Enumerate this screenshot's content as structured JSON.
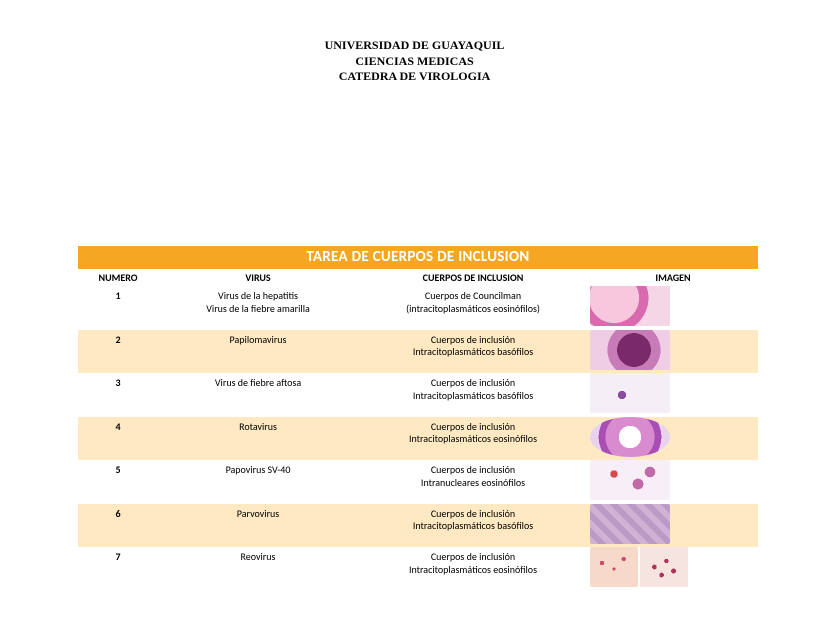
{
  "colors": {
    "banner": "#f5a623",
    "row_alt": "#ffe9c2",
    "text": "#000000"
  },
  "heading": {
    "l1": "UNIVERSIDAD DE GUAYAQUIL",
    "l2": "CIENCIAS MEDICAS",
    "l3": "CATEDRA DE VIROLOGIA"
  },
  "table": {
    "title": "TAREA DE CUERPOS DE INCLUSION",
    "columns": [
      "NUMERO",
      "VIRUS",
      "CUERPOS DE INCLUSION",
      "IMAGEN"
    ],
    "rows": [
      {
        "n": "1",
        "virus": "Virus de la hepatitis\nVirus de la fiebre amarilla",
        "body": "Cuerpos de Councilman\n(intracitoplasmáticos eosinófilos)",
        "img_class": "m1",
        "alt": false
      },
      {
        "n": "2",
        "virus": "Papilomavirus",
        "body": "Cuerpos de inclusión\nIntracitoplasmáticos basófilos",
        "img_class": "m2",
        "alt": true
      },
      {
        "n": "3",
        "virus": "Virus de fiebre aftosa",
        "body": "Cuerpos de inclusión\nIntracitoplasmáticos basófilos",
        "img_class": "m3",
        "alt": false
      },
      {
        "n": "4",
        "virus": "Rotavirus",
        "body": "Cuerpos de inclusión\nIntracitoplasmáticos eosinófilos",
        "img_class": "m4",
        "alt": true
      },
      {
        "n": "5",
        "virus": "Papovirus SV-40",
        "body": "Cuerpos de inclusión\nIntranucleares eosinófilos",
        "img_class": "m5",
        "alt": false
      },
      {
        "n": "6",
        "virus": "Parvovirus",
        "body": "Cuerpos de inclusión\nIntracitoplasmáticos basófilos",
        "img_class": "m6",
        "alt": true
      },
      {
        "n": "7",
        "virus": "Reovirus",
        "body": "Cuerpos de inclusión\nIntracitoplasmáticos eosinófilos",
        "img_class": "m7",
        "alt": false
      }
    ]
  }
}
